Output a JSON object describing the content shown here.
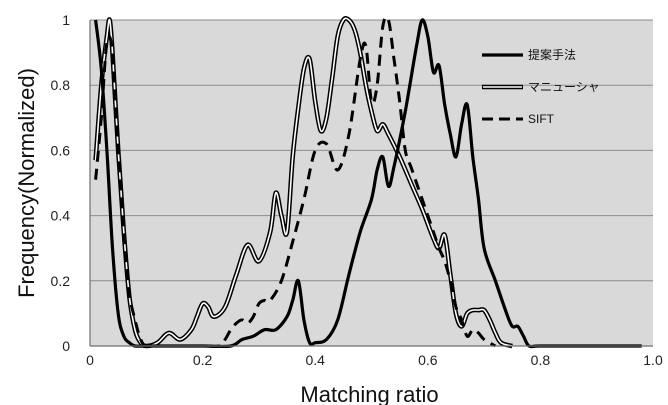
{
  "chart_data": {
    "type": "line",
    "title": "",
    "xlabel": "Matching ratio",
    "ylabel": "Frequency(Normalized)",
    "xlim": [
      0,
      1.0
    ],
    "ylim": [
      0,
      1
    ],
    "x_ticks": [
      0,
      0.2,
      0.4,
      0.6,
      0.8,
      1.0
    ],
    "x_tick_labels": [
      "0",
      "0.2",
      "0.4",
      "0.6",
      "0.8",
      "1.0"
    ],
    "y_ticks": [
      0,
      0.2,
      0.4,
      0.6,
      0.8,
      1
    ],
    "y_tick_labels": [
      "0",
      "0.2",
      "0.4",
      "0.6",
      "0.8",
      "1"
    ],
    "grid": "horizontal",
    "background": "#d9d9d9",
    "legend_position": "top-right",
    "series": [
      {
        "name": "提案手法",
        "style": "solid-thick",
        "color": "#000000",
        "x": [
          0.01,
          0.02,
          0.03,
          0.04,
          0.05,
          0.06,
          0.07,
          0.08,
          0.1,
          0.15,
          0.2,
          0.25,
          0.27,
          0.29,
          0.31,
          0.33,
          0.35,
          0.36,
          0.37,
          0.38,
          0.39,
          0.4,
          0.42,
          0.44,
          0.46,
          0.48,
          0.5,
          0.51,
          0.52,
          0.53,
          0.54,
          0.56,
          0.58,
          0.59,
          0.6,
          0.61,
          0.62,
          0.63,
          0.64,
          0.65,
          0.66,
          0.67,
          0.68,
          0.69,
          0.7,
          0.72,
          0.74,
          0.75,
          0.76,
          0.77,
          0.78,
          0.8,
          0.9,
          0.98
        ],
        "y": [
          1.0,
          0.85,
          0.6,
          0.3,
          0.1,
          0.03,
          0.01,
          0.0,
          0.0,
          0.0,
          0.0,
          0.0,
          0.02,
          0.03,
          0.05,
          0.05,
          0.09,
          0.14,
          0.2,
          0.08,
          0.01,
          0.01,
          0.02,
          0.08,
          0.22,
          0.35,
          0.45,
          0.54,
          0.58,
          0.49,
          0.55,
          0.72,
          0.92,
          1.0,
          0.95,
          0.84,
          0.86,
          0.74,
          0.65,
          0.58,
          0.68,
          0.74,
          0.58,
          0.45,
          0.3,
          0.2,
          0.1,
          0.06,
          0.06,
          0.03,
          0.0,
          0.0,
          0.0,
          0.0
        ]
      },
      {
        "name": "マニューシャ",
        "style": "double-line",
        "color": "#000000",
        "x": [
          0.01,
          0.02,
          0.03,
          0.035,
          0.04,
          0.05,
          0.06,
          0.07,
          0.08,
          0.09,
          0.1,
          0.12,
          0.14,
          0.16,
          0.18,
          0.19,
          0.2,
          0.21,
          0.22,
          0.24,
          0.26,
          0.28,
          0.3,
          0.32,
          0.33,
          0.34,
          0.35,
          0.36,
          0.37,
          0.38,
          0.39,
          0.4,
          0.41,
          0.42,
          0.43,
          0.44,
          0.45,
          0.46,
          0.47,
          0.48,
          0.49,
          0.5,
          0.51,
          0.52,
          0.53,
          0.55,
          0.57,
          0.59,
          0.61,
          0.62,
          0.63,
          0.64,
          0.65,
          0.66,
          0.67,
          0.68,
          0.69,
          0.7,
          0.71,
          0.72,
          0.73,
          0.75
        ],
        "y": [
          0.57,
          0.8,
          0.95,
          1.0,
          0.9,
          0.6,
          0.35,
          0.15,
          0.05,
          0.01,
          0.0,
          0.01,
          0.04,
          0.02,
          0.05,
          0.09,
          0.13,
          0.12,
          0.09,
          0.12,
          0.22,
          0.31,
          0.26,
          0.35,
          0.47,
          0.4,
          0.35,
          0.58,
          0.73,
          0.85,
          0.88,
          0.75,
          0.66,
          0.7,
          0.82,
          0.95,
          1.0,
          1.0,
          0.97,
          0.9,
          0.8,
          0.72,
          0.66,
          0.68,
          0.65,
          0.58,
          0.5,
          0.42,
          0.33,
          0.3,
          0.34,
          0.22,
          0.1,
          0.06,
          0.1,
          0.11,
          0.11,
          0.11,
          0.08,
          0.04,
          0.01,
          0.0
        ]
      },
      {
        "name": "SIFT",
        "style": "dashed",
        "color": "#000000",
        "x": [
          0.01,
          0.02,
          0.03,
          0.04,
          0.05,
          0.06,
          0.07,
          0.08,
          0.09,
          0.1,
          0.12,
          0.15,
          0.2,
          0.23,
          0.24,
          0.25,
          0.26,
          0.27,
          0.28,
          0.29,
          0.3,
          0.31,
          0.32,
          0.34,
          0.36,
          0.38,
          0.4,
          0.42,
          0.44,
          0.46,
          0.48,
          0.49,
          0.5,
          0.51,
          0.52,
          0.53,
          0.54,
          0.55,
          0.56,
          0.57,
          0.58,
          0.59,
          0.6,
          0.61,
          0.62,
          0.63,
          0.64,
          0.65,
          0.66,
          0.67,
          0.68,
          0.69,
          0.7,
          0.72
        ],
        "y": [
          0.51,
          0.7,
          0.93,
          0.9,
          0.6,
          0.33,
          0.16,
          0.08,
          0.02,
          0.0,
          0.0,
          0.0,
          0.0,
          0.0,
          0.02,
          0.05,
          0.07,
          0.08,
          0.07,
          0.09,
          0.13,
          0.14,
          0.14,
          0.2,
          0.32,
          0.45,
          0.6,
          0.62,
          0.54,
          0.65,
          0.88,
          0.92,
          0.75,
          0.8,
          0.98,
          1.0,
          0.88,
          0.75,
          0.6,
          0.55,
          0.5,
          0.45,
          0.4,
          0.35,
          0.3,
          0.26,
          0.2,
          0.12,
          0.08,
          0.03,
          0.05,
          0.04,
          0.02,
          0.0
        ]
      }
    ]
  }
}
